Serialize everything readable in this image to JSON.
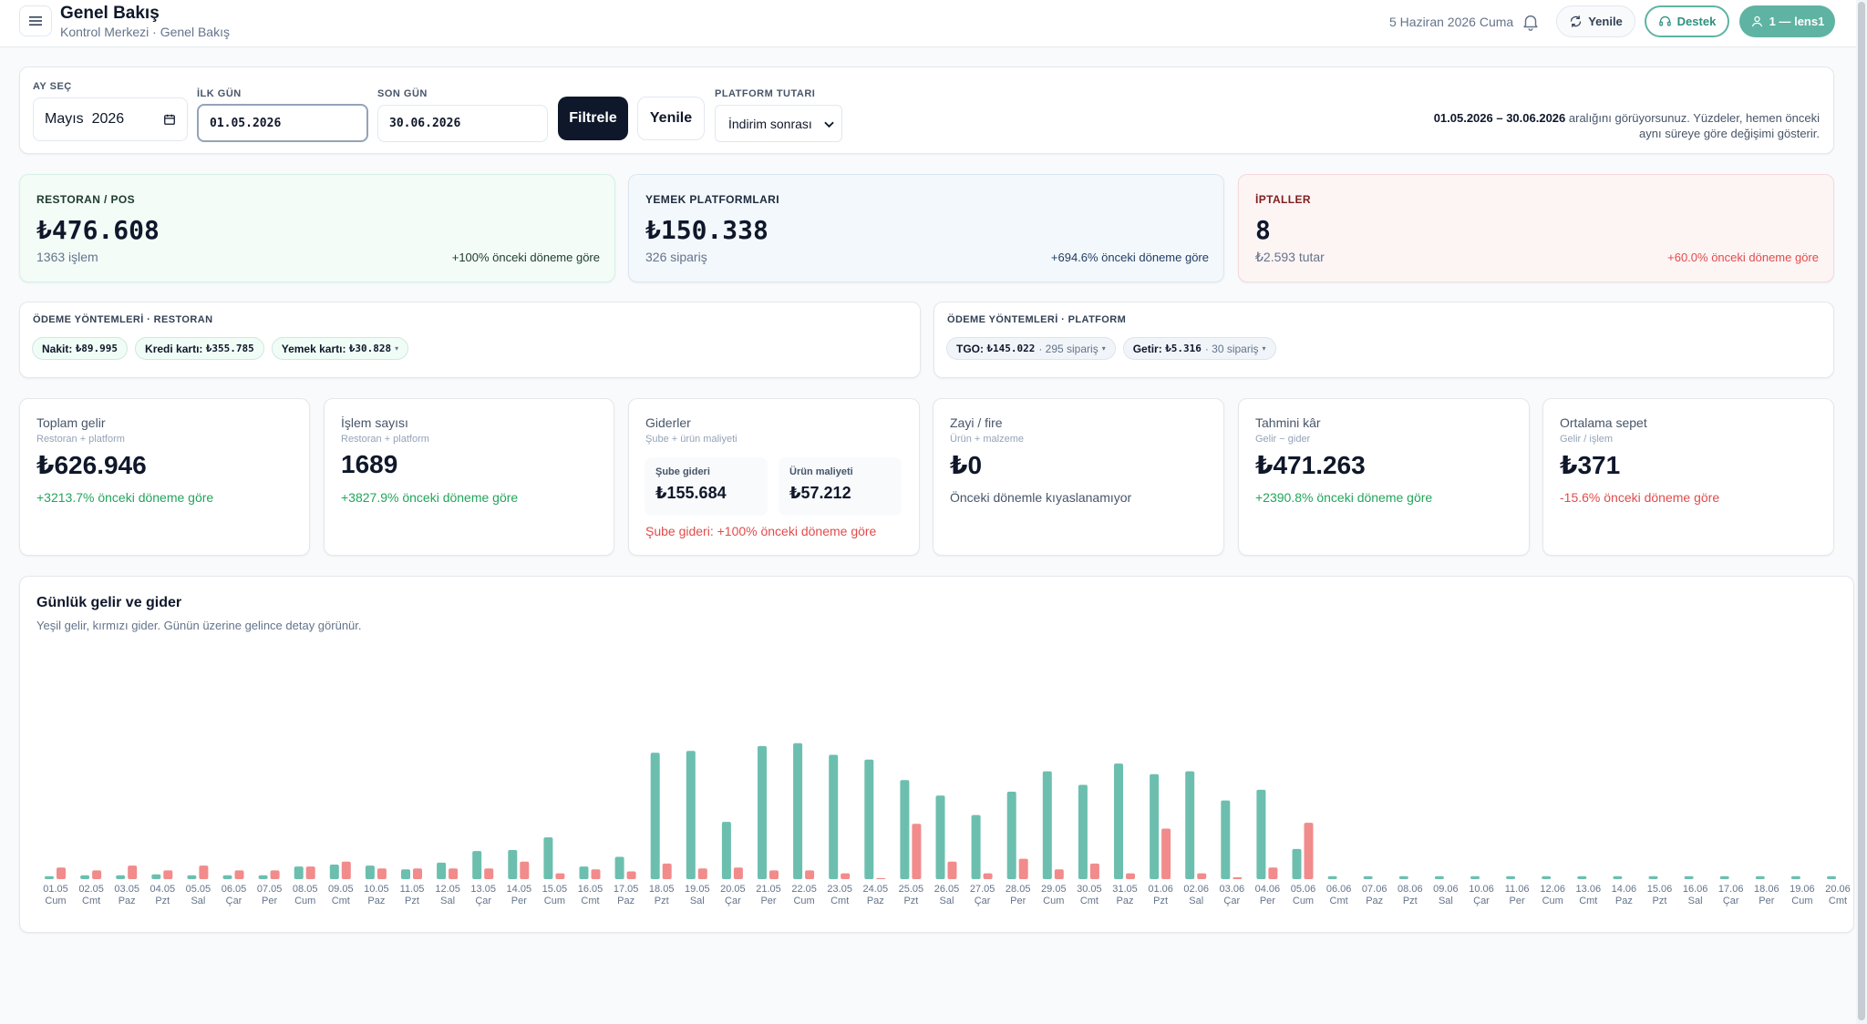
{
  "header": {
    "title": "Genel Bakış",
    "breadcrumb": "Kontrol Merkezi · Genel Bakış",
    "date": "5 Haziran 2026 Cuma",
    "refresh_label": "Yenile",
    "support_label": "Destek",
    "user_label": "1 — lens1"
  },
  "filters": {
    "month_label": "AY SEÇ",
    "month_value": "Mayıs  2026",
    "start_label": "İLK GÜN",
    "start_value": "01.05.2026",
    "end_label": "SON GÜN",
    "end_value": "30.06.2026",
    "filter_btn": "Filtrele",
    "refresh_btn": "Yenile",
    "platform_label": "PLATFORM TUTARI",
    "platform_value": "İndirim sonrası",
    "range_bold": "01.05.2026 – 30.06.2026",
    "range_text": " aralığını görüyorsunuz. Yüzdeler, hemen önceki aynı süreye göre değişimi gösterir."
  },
  "kpis": {
    "restaurant": {
      "label": "RESTORAN / POS",
      "value": "₺476.608",
      "sub": "1363 işlem",
      "change": "+100% önceki döneme göre"
    },
    "platforms": {
      "label": "YEMEK PLATFORMLARI",
      "value": "₺150.338",
      "sub": "326 sipariş",
      "change": "+694.6% önceki döneme göre"
    },
    "cancels": {
      "label": "İPTALLER",
      "value": "8",
      "sub": "₺2.593 tutar",
      "change": "+60.0% önceki döneme göre"
    }
  },
  "payments": {
    "restaurant": {
      "title": "ÖDEME YÖNTEMLERİ · RESTORAN",
      "cash_label": "Nakit:",
      "cash_value": "₺89.995",
      "card_label": "Kredi kartı:",
      "card_value": "₺355.785",
      "meal_label": "Yemek kartı:",
      "meal_value": "₺30.828"
    },
    "platform": {
      "title": "ÖDEME YÖNTEMLERİ · PLATFORM",
      "tgo_label": "TGO:",
      "tgo_value": "₺145.022",
      "tgo_count": "· 295 sipariş",
      "getir_label": "Getir:",
      "getir_value": "₺5.316",
      "getir_count": "· 30 sipariş"
    }
  },
  "stats": {
    "total_income": {
      "title": "Toplam gelir",
      "sub": "Restoran + platform",
      "value": "₺626.946",
      "change": "+3213.7% önceki döneme göre"
    },
    "transactions": {
      "title": "İşlem sayısı",
      "sub": "Restoran + platform",
      "value": "1689",
      "change": "+3827.9% önceki döneme göre"
    },
    "expenses": {
      "title": "Giderler",
      "sub": "Şube + ürün maliyeti",
      "branch_label": "Şube gideri",
      "branch_value": "₺155.684",
      "cost_label": "Ürün maliyeti",
      "cost_value": "₺57.212",
      "change": "Şube gideri: +100% önceki döneme göre"
    },
    "waste": {
      "title": "Zayi / fire",
      "sub": "Ürün + malzeme",
      "value": "₺0",
      "change": "Önceki dönemle kıyaslanamıyor"
    },
    "profit": {
      "title": "Tahmini kâr",
      "sub": "Gelir − gider",
      "value": "₺471.263",
      "change": "+2390.8% önceki döneme göre"
    },
    "basket": {
      "title": "Ortalama sepet",
      "sub": "Gelir / işlem",
      "value": "₺371",
      "change": "-15.6% önceki döneme göre"
    }
  },
  "colors": {
    "income": "#6cbfae",
    "expense": "#f28b8b",
    "positive": "#22a55b",
    "negative": "#e24b4b"
  },
  "chart": {
    "title": "Günlük gelir ve gider",
    "subtitle": "Yeşil gelir, kırmızı gider. Günün üzerine gelince detay görünür."
  },
  "chart_data": {
    "type": "bar",
    "categories": [
      "01.05",
      "02.05",
      "03.05",
      "04.05",
      "05.05",
      "06.05",
      "07.05",
      "08.05",
      "09.05",
      "10.05",
      "11.05",
      "12.05",
      "13.05",
      "14.05",
      "15.05",
      "16.05",
      "17.05",
      "18.05",
      "19.05",
      "20.05",
      "21.05",
      "22.05",
      "23.05",
      "24.05",
      "25.05",
      "26.05",
      "27.05",
      "28.05",
      "29.05",
      "30.05",
      "31.05",
      "01.06",
      "02.06",
      "03.06",
      "04.06",
      "05.06",
      "06.06",
      "07.06",
      "08.06",
      "09.06",
      "10.06",
      "11.06",
      "12.06",
      "13.06",
      "14.06",
      "15.06",
      "16.06",
      "17.06",
      "18.06",
      "19.06",
      "20.06"
    ],
    "weekdays": [
      "Cum",
      "Cmt",
      "Paz",
      "Pzt",
      "Sal",
      "Çar",
      "Per",
      "Cum",
      "Cmt",
      "Paz",
      "Pzt",
      "Sal",
      "Çar",
      "Per",
      "Cum",
      "Cmt",
      "Paz",
      "Pzt",
      "Sal",
      "Çar",
      "Per",
      "Cum",
      "Cmt",
      "Paz",
      "Pzt",
      "Sal",
      "Çar",
      "Per",
      "Cum",
      "Cmt",
      "Paz",
      "Pzt",
      "Sal",
      "Çar",
      "Per",
      "Cum",
      "Cmt",
      "Paz",
      "Pzt",
      "Sal",
      "Çar",
      "Per",
      "Cum",
      "Cmt",
      "Paz",
      "Pzt",
      "Sal",
      "Çar",
      "Per",
      "Cum",
      "Cmt"
    ],
    "series": [
      {
        "name": "Gelir",
        "values": [
          3,
          4,
          4,
          5,
          4,
          4,
          4,
          13,
          15,
          14,
          10,
          17,
          29,
          30,
          43,
          13,
          23,
          130,
          132,
          59,
          137,
          140,
          128,
          123,
          102,
          86,
          66,
          90,
          111,
          97,
          119,
          108,
          111,
          81,
          92,
          31,
          3,
          3,
          3,
          3,
          3,
          3,
          3,
          3,
          3,
          3,
          3,
          3,
          3,
          3,
          3
        ]
      },
      {
        "name": "Gider",
        "values": [
          12,
          9,
          14,
          9,
          14,
          9,
          9,
          13,
          18,
          11,
          11,
          11,
          11,
          18,
          6,
          10,
          8,
          16,
          11,
          12,
          9,
          9,
          6,
          1,
          57,
          18,
          6,
          21,
          10,
          16,
          6,
          52,
          6,
          2,
          12,
          58,
          0,
          0,
          0,
          0,
          0,
          0,
          0,
          0,
          0,
          0,
          0,
          0,
          0,
          0,
          0
        ]
      }
    ],
    "ylim": [
      0,
      150
    ],
    "grid": false
  }
}
